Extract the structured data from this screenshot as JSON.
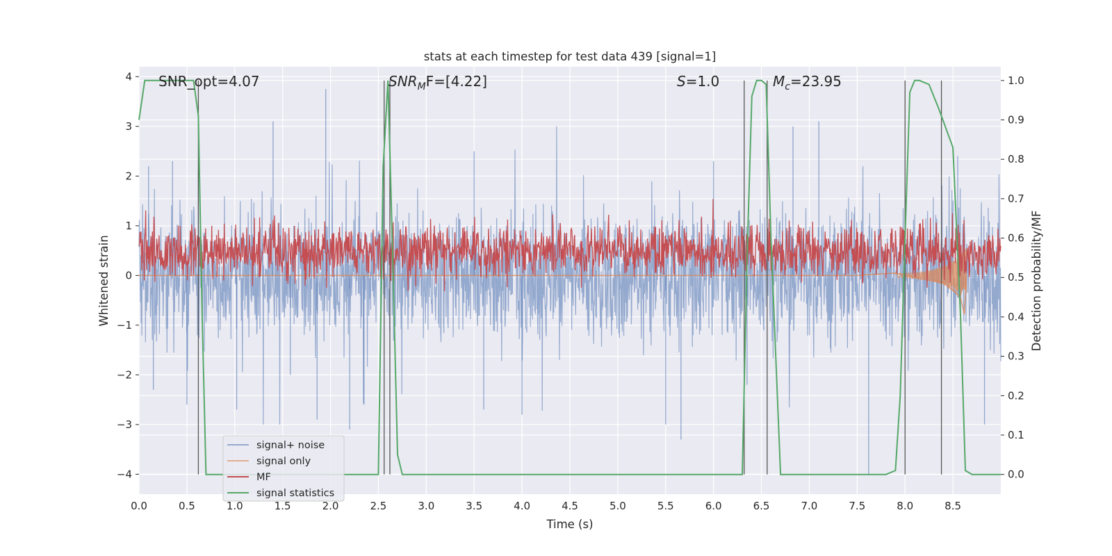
{
  "chart_data": {
    "type": "line",
    "title": "stats at each timestep for test data 439 [signal=1]",
    "xlabel": "Time (s)",
    "ylabel_left": "Whitened strain",
    "ylabel_right": "Detection probability/MF",
    "xlim": [
      0.0,
      9.0
    ],
    "ylim_left": [
      -4.4,
      4.2
    ],
    "ylim_right": [
      -0.05,
      1.035
    ],
    "x_ticks": [
      "0.0",
      "0.5",
      "1.0",
      "1.5",
      "2.0",
      "2.5",
      "3.0",
      "3.5",
      "4.0",
      "4.5",
      "5.0",
      "5.5",
      "6.0",
      "6.5",
      "7.0",
      "7.5",
      "8.0",
      "8.5"
    ],
    "y_ticks_left": [
      "4",
      "3",
      "2",
      "1",
      "0",
      "−1",
      "−2",
      "−3",
      "−4"
    ],
    "y_ticks_right": [
      "1.0",
      "0.9",
      "0.8",
      "0.7",
      "0.6",
      "0.5",
      "0.4",
      "0.3",
      "0.2",
      "0.1",
      "0.0"
    ],
    "grid": true,
    "legend_placement": "lower-left",
    "annotations": {
      "snr_opt": "SNR_opt=4.07",
      "snr_mf_sym": "SNR",
      "snr_mf_sub": "M",
      "snr_mf_rest": "F=[4.22]",
      "s_sym": "S",
      "s_val": "=1.0",
      "mc_sym": "M",
      "mc_sub": "c",
      "mc_val": "=23.95"
    },
    "series": [
      {
        "name": "signal+ noise",
        "color": "#4c72b0",
        "description_envelope": {
          "x": [
            0.0,
            9.0
          ],
          "typical_band": [
            -1.6,
            1.6
          ],
          "spikes": [
            [
              0.1,
              2.2
            ],
            [
              0.15,
              -2.3
            ],
            [
              0.35,
              2.3
            ],
            [
              0.5,
              -2.6
            ],
            [
              0.62,
              2.1
            ],
            [
              1.02,
              -2.7
            ],
            [
              1.4,
              3.1
            ],
            [
              1.58,
              -2.0
            ],
            [
              1.95,
              3.75
            ],
            [
              1.86,
              -2.9
            ],
            [
              2.2,
              -3.1
            ],
            [
              2.35,
              -2.6
            ],
            [
              3.5,
              2.5
            ],
            [
              3.6,
              -2.7
            ],
            [
              4.0,
              -2.8
            ],
            [
              5.5,
              -3.0
            ],
            [
              5.66,
              -3.3
            ],
            [
              6.0,
              2.3
            ],
            [
              6.35,
              -2.2
            ],
            [
              6.83,
              3.0
            ],
            [
              7.1,
              3.1
            ],
            [
              7.62,
              -4.0
            ],
            [
              8.55,
              2.4
            ],
            [
              8.83,
              -3.0
            ]
          ]
        }
      },
      {
        "name": "signal only",
        "color": "#dd8452",
        "points": [
          [
            0.0,
            0.0
          ],
          [
            7.5,
            0.0
          ],
          [
            7.9,
            0.05
          ],
          [
            8.2,
            -0.08
          ],
          [
            8.4,
            -0.15
          ],
          [
            8.5,
            -0.3
          ],
          [
            8.58,
            -0.45
          ],
          [
            8.62,
            -0.78
          ],
          [
            8.64,
            0.0
          ]
        ]
      },
      {
        "name": "MF",
        "color": "#c44e52",
        "axis": "right",
        "band": [
          0.52,
          0.61
        ]
      },
      {
        "name": "signal statistics",
        "color": "#55a868",
        "axis": "right",
        "x": [
          0.0,
          0.06,
          0.1,
          0.3,
          0.5,
          0.57,
          0.62,
          0.66,
          0.7,
          0.8,
          2.5,
          2.55,
          2.6,
          2.65,
          2.7,
          2.75,
          6.3,
          6.35,
          6.4,
          6.45,
          6.5,
          6.55,
          6.6,
          6.7,
          7.8,
          7.9,
          7.95,
          8.0,
          8.05,
          8.1,
          8.15,
          8.25,
          8.35,
          8.5,
          8.58,
          8.63,
          8.7,
          9.0
        ],
        "y": [
          0.9,
          1.0,
          1.0,
          1.0,
          1.0,
          1.0,
          0.91,
          0.4,
          0.0,
          0.0,
          0.0,
          0.78,
          1.0,
          0.55,
          0.05,
          0.0,
          0.0,
          0.55,
          0.96,
          1.0,
          1.0,
          0.99,
          0.6,
          0.0,
          0.0,
          0.01,
          0.2,
          0.6,
          0.97,
          1.0,
          1.0,
          0.99,
          0.93,
          0.83,
          0.4,
          0.01,
          0.0,
          0.0
        ]
      }
    ],
    "vertical_markers_x": [
      0.62,
      2.56,
      2.62,
      6.32,
      6.56,
      8.0,
      8.38
    ]
  }
}
